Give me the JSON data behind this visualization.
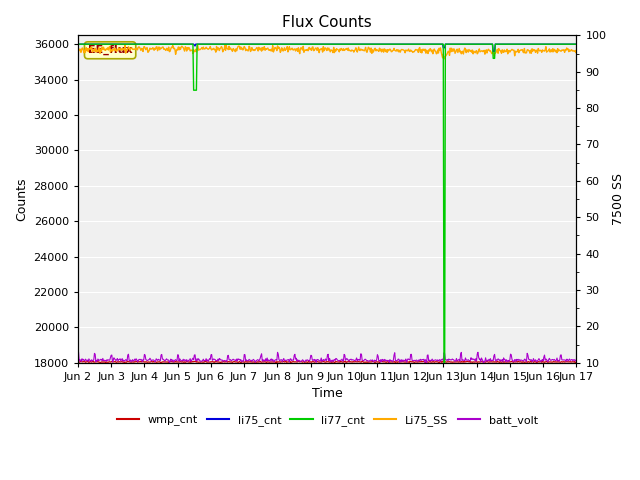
{
  "title": "Flux Counts",
  "ylabel_left": "Counts",
  "ylabel_right": "7500 SS",
  "xlabel": "Time",
  "ylim_left": [
    18000,
    36500
  ],
  "ylim_right": [
    10,
    100
  ],
  "yticks_left": [
    18000,
    20000,
    22000,
    24000,
    26000,
    28000,
    30000,
    32000,
    34000,
    36000
  ],
  "yticks_right": [
    10,
    20,
    30,
    40,
    50,
    60,
    70,
    80,
    90,
    100
  ],
  "xtick_labels": [
    "Jun 2",
    "Jun 3",
    "Jun 4",
    "Jun 5",
    "Jun 6",
    "Jun 7",
    "Jun 8",
    "Jun 9",
    "Jun 10",
    "Jun 11",
    "Jun 12",
    "Jun 13",
    "Jun 14",
    "Jun 15",
    "Jun 16",
    "Jun 17"
  ],
  "figure_bg": "#ffffff",
  "plot_bg": "#f0f0f0",
  "grid_color": "#ffffff",
  "annotation_text": "EE_flux",
  "colors": {
    "wmp_cnt": "#cc0000",
    "li75_cnt": "#0000dd",
    "li77_cnt": "#00cc00",
    "Li75_SS": "#ffaa00",
    "batt_volt": "#aa00cc"
  },
  "legend_labels": [
    "wmp_cnt",
    "li75_cnt",
    "li77_cnt",
    "Li75_SS",
    "batt_volt"
  ]
}
